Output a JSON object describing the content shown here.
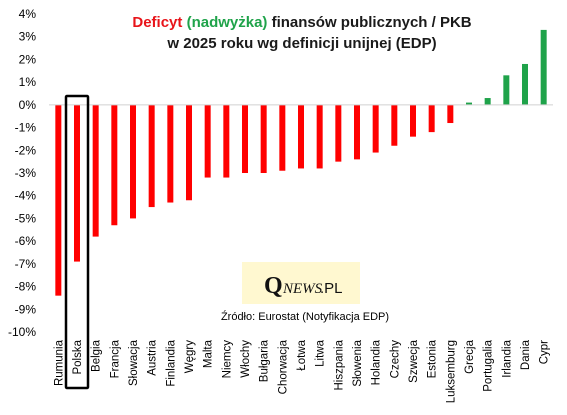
{
  "chart_data": {
    "type": "bar",
    "title_parts": [
      {
        "text": "Deficyt",
        "color": "#e8141a"
      },
      {
        "text": " (nadwyżka)",
        "color": "#1fa34a"
      },
      {
        "text": " finansów publicznych  / PKB",
        "color": "#1a1a1a"
      }
    ],
    "subtitle": "w 2025 roku wg definicji unijnej  (EDP)",
    "ylim": [
      -10,
      4
    ],
    "ytick_labels": [
      "4%",
      "3%",
      "2%",
      "1%",
      "0%",
      "-1%",
      "-2%",
      "-3%",
      "-4%",
      "-5%",
      "-6%",
      "-7%",
      "-8%",
      "-9%",
      "-10%"
    ],
    "categories": [
      "Rumunia",
      "Polska",
      "Belgia",
      "Francja",
      "Słowacja",
      "Austria",
      "Finlandia",
      "Węgry",
      "Malta",
      "Niemcy",
      "Włochy",
      "Bułgaria",
      "Chorwacja",
      "Łotwa",
      "Litwa",
      "Hiszpania",
      "Słowenia",
      "Holandia",
      "Czechy",
      "Szwecja",
      "Estonia",
      "Luksemburg",
      "Grecja",
      "Portugalia",
      "Irlandia",
      "Dania",
      "Cypr"
    ],
    "values": [
      -8.4,
      -6.9,
      -5.8,
      -5.3,
      -5.0,
      -4.5,
      -4.3,
      -4.2,
      -3.2,
      -3.2,
      -3.0,
      -3.0,
      -2.9,
      -2.8,
      -2.8,
      -2.5,
      -2.4,
      -2.1,
      -1.8,
      -1.4,
      -1.2,
      -0.8,
      0.1,
      0.3,
      1.3,
      1.8,
      3.3
    ],
    "negative_color": "#ff0000",
    "positive_color": "#1fa34a",
    "highlighted_category": "Polska",
    "grid": false
  },
  "logo": {
    "q": "Q",
    "news": "NEWS",
    "pl": ".PL"
  },
  "source": "Źródło: Eurostat (Notyfikacja EDP)"
}
